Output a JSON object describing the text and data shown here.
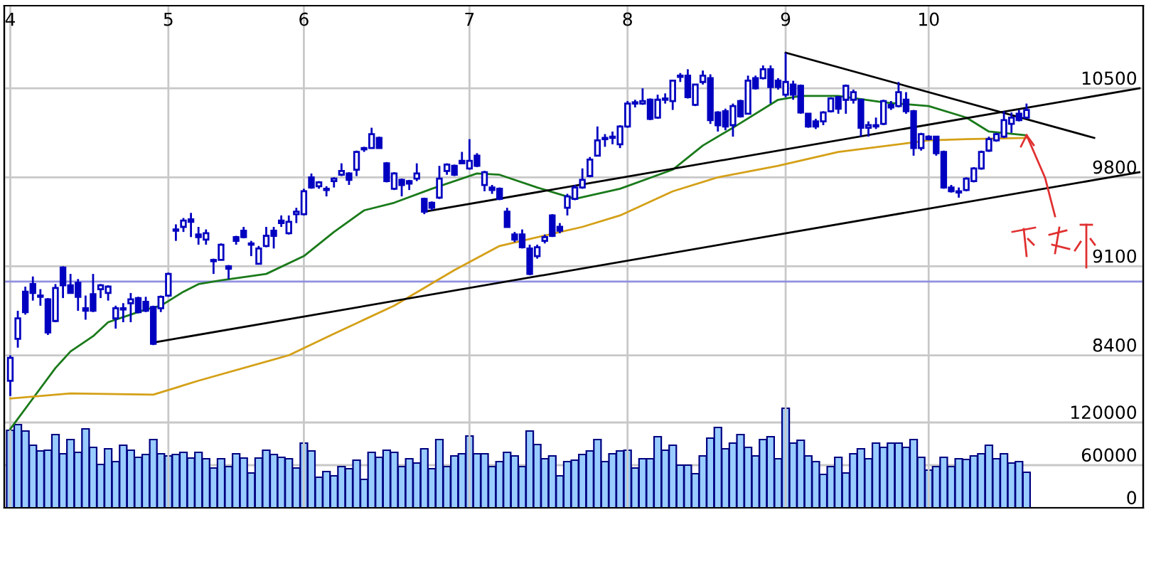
{
  "chart_data": {
    "type": "candlestick",
    "color": "#0000c0",
    "categories": [
      "4",
      null,
      null,
      null,
      null,
      null,
      null,
      null,
      null,
      null,
      null,
      null,
      null,
      null,
      null,
      null,
      null,
      null,
      null,
      null,
      null,
      "5",
      null,
      null,
      null,
      null,
      null,
      null,
      null,
      null,
      null,
      null,
      null,
      null,
      null,
      null,
      null,
      null,
      null,
      "6",
      null,
      null,
      null,
      null,
      null,
      null,
      null,
      null,
      null,
      null,
      null,
      null,
      null,
      null,
      null,
      null,
      null,
      null,
      null,
      null,
      null,
      "7",
      null,
      null,
      null,
      null,
      null,
      null,
      null,
      null,
      null,
      null,
      null,
      null,
      null,
      null,
      null,
      null,
      null,
      null,
      null,
      null,
      "8",
      null,
      null,
      null,
      null,
      null,
      null,
      null,
      null,
      null,
      null,
      null,
      null,
      null,
      null,
      null,
      null,
      null,
      null,
      null,
      null,
      "9",
      null,
      null,
      null,
      null,
      null,
      null,
      null,
      null,
      null,
      null,
      null,
      null,
      null,
      null,
      null,
      null,
      null,
      null,
      "10",
      null,
      null,
      null,
      null,
      null,
      null,
      null,
      null,
      null,
      null,
      null,
      null,
      null,
      null,
      null,
      null,
      null,
      null,
      null,
      null,
      null,
      null,
      null,
      null,
      null,
      null,
      null,
      null
    ],
    "ohlc": [
      [
        8200,
        8400,
        8080,
        8380
      ],
      [
        8530,
        8750,
        8460,
        8690
      ],
      [
        8900,
        8940,
        8720,
        8740
      ],
      [
        8960,
        9020,
        8830,
        8890
      ],
      [
        8870,
        8920,
        8790,
        8860
      ],
      [
        8840,
        8850,
        8560,
        8580
      ],
      [
        8670,
        8960,
        8660,
        8930
      ],
      [
        9090,
        9100,
        8850,
        8950
      ],
      [
        8950,
        9040,
        8890,
        8890
      ],
      [
        8970,
        9000,
        8750,
        8860
      ],
      [
        8770,
        8870,
        8680,
        8750
      ],
      [
        8880,
        9040,
        8740,
        8750
      ],
      [
        8920,
        8960,
        8850,
        8950
      ],
      [
        8890,
        8950,
        8830,
        8940
      ],
      [
        8690,
        8790,
        8610,
        8770
      ],
      [
        8770,
        8810,
        8660,
        8760
      ],
      [
        8810,
        8890,
        8660,
        8840
      ],
      [
        8850,
        8860,
        8730,
        8740
      ],
      [
        8820,
        8860,
        8740,
        8750
      ],
      [
        8780,
        8790,
        8480,
        8490
      ],
      [
        8770,
        8870,
        8740,
        8860
      ],
      [
        8870,
        9050,
        8860,
        9040
      ],
      [
        9390,
        9430,
        9300,
        9380
      ],
      [
        9410,
        9480,
        9370,
        9460
      ],
      [
        9470,
        9520,
        9330,
        9450
      ],
      [
        9350,
        9410,
        9270,
        9330
      ],
      [
        9310,
        9390,
        9270,
        9360
      ],
      [
        9150,
        9160,
        9040,
        9140
      ],
      [
        9150,
        9280,
        9150,
        9270
      ],
      [
        9100,
        9110,
        9000,
        9080
      ],
      [
        9330,
        9340,
        9270,
        9300
      ],
      [
        9380,
        9410,
        9320,
        9330
      ],
      [
        9280,
        9300,
        9180,
        9270
      ],
      [
        9120,
        9260,
        9120,
        9240
      ],
      [
        9260,
        9410,
        9250,
        9340
      ],
      [
        9380,
        9410,
        9240,
        9340
      ],
      [
        9460,
        9500,
        9410,
        9440
      ],
      [
        9360,
        9500,
        9350,
        9450
      ],
      [
        9510,
        9560,
        9440,
        9530
      ],
      [
        9510,
        9710,
        9500,
        9690
      ],
      [
        9800,
        9830,
        9710,
        9720
      ],
      [
        9730,
        9770,
        9710,
        9760
      ],
      [
        9710,
        9730,
        9650,
        9700
      ],
      [
        9770,
        9800,
        9720,
        9790
      ],
      [
        9820,
        9910,
        9810,
        9850
      ],
      [
        9830,
        9840,
        9740,
        9780
      ],
      [
        9860,
        10010,
        9810,
        10000
      ],
      [
        10020,
        10040,
        10000,
        10030
      ],
      [
        10030,
        10190,
        10030,
        10140
      ],
      [
        10110,
        10120,
        10030,
        10030
      ],
      [
        9910,
        9920,
        9760,
        9770
      ],
      [
        9710,
        9840,
        9700,
        9830
      ],
      [
        9780,
        9790,
        9650,
        9740
      ],
      [
        9770,
        9780,
        9700,
        9750
      ],
      [
        9790,
        9910,
        9770,
        9830
      ],
      [
        9630,
        9640,
        9510,
        9530
      ],
      [
        9600,
        9610,
        9540,
        9560
      ],
      [
        9640,
        9890,
        9630,
        9790
      ],
      [
        9850,
        9910,
        9820,
        9900
      ],
      [
        9890,
        9900,
        9810,
        9820
      ],
      [
        9930,
        10000,
        9910,
        9910
      ],
      [
        9870,
        10100,
        9860,
        9930
      ],
      [
        9970,
        9990,
        9880,
        9890
      ],
      [
        9740,
        9850,
        9690,
        9840
      ],
      [
        9720,
        9740,
        9670,
        9700
      ],
      [
        9710,
        9720,
        9620,
        9630
      ],
      [
        9530,
        9560,
        9410,
        9410
      ],
      [
        9350,
        9370,
        9290,
        9310
      ],
      [
        9350,
        9390,
        9240,
        9250
      ],
      [
        9240,
        9270,
        9030,
        9040
      ],
      [
        9180,
        9270,
        9160,
        9250
      ],
      [
        9300,
        9350,
        9280,
        9330
      ],
      [
        9500,
        9510,
        9330,
        9340
      ],
      [
        9410,
        9440,
        9360,
        9380
      ],
      [
        9560,
        9670,
        9500,
        9650
      ],
      [
        9630,
        9740,
        9620,
        9720
      ],
      [
        9720,
        9870,
        9710,
        9780
      ],
      [
        9810,
        9960,
        9800,
        9940
      ],
      [
        9970,
        10200,
        9970,
        10090
      ],
      [
        10100,
        10140,
        10040,
        10110
      ],
      [
        10110,
        10160,
        10060,
        10120
      ],
      [
        10060,
        10210,
        10030,
        10200
      ],
      [
        10200,
        10400,
        10190,
        10380
      ],
      [
        10380,
        10410,
        10350,
        10390
      ],
      [
        10380,
        10500,
        10370,
        10400
      ],
      [
        10410,
        10420,
        10250,
        10260
      ],
      [
        10270,
        10450,
        10260,
        10410
      ],
      [
        10410,
        10460,
        10380,
        10420
      ],
      [
        10400,
        10560,
        10330,
        10560
      ],
      [
        10590,
        10620,
        10550,
        10600
      ],
      [
        10600,
        10650,
        10420,
        10430
      ],
      [
        10370,
        10530,
        10360,
        10530
      ],
      [
        10550,
        10640,
        10530,
        10600
      ],
      [
        10580,
        10610,
        10220,
        10250
      ],
      [
        10310,
        10320,
        10160,
        10210
      ],
      [
        10320,
        10340,
        10170,
        10200
      ],
      [
        10210,
        10380,
        10120,
        10360
      ],
      [
        10400,
        10410,
        10270,
        10280
      ],
      [
        10300,
        10600,
        10300,
        10560
      ],
      [
        10580,
        10600,
        10490,
        10500
      ],
      [
        10580,
        10680,
        10570,
        10650
      ],
      [
        10650,
        10680,
        10380,
        10510
      ],
      [
        10560,
        10580,
        10490,
        10510
      ],
      [
        10450,
        10780,
        10430,
        10550
      ],
      [
        10530,
        10560,
        10410,
        10450
      ],
      [
        10520,
        10530,
        10300,
        10310
      ],
      [
        10300,
        10300,
        10190,
        10200
      ],
      [
        10240,
        10260,
        10180,
        10200
      ],
      [
        10240,
        10320,
        10210,
        10310
      ],
      [
        10320,
        10430,
        10310,
        10420
      ],
      [
        10430,
        10440,
        10300,
        10340
      ],
      [
        10410,
        10530,
        10300,
        10520
      ],
      [
        10410,
        10490,
        10380,
        10470
      ],
      [
        10410,
        10410,
        10120,
        10190
      ],
      [
        10190,
        10240,
        10120,
        10210
      ],
      [
        10200,
        10270,
        10180,
        10210
      ],
      [
        10220,
        10410,
        10210,
        10400
      ],
      [
        10370,
        10400,
        10330,
        10350
      ],
      [
        10360,
        10550,
        10350,
        10470
      ],
      [
        10410,
        10470,
        10300,
        10320
      ],
      [
        10320,
        10330,
        9970,
        10030
      ],
      [
        10030,
        10150,
        10010,
        10140
      ],
      [
        10120,
        10130,
        10090,
        10100
      ],
      [
        10120,
        10120,
        9970,
        9990
      ],
      [
        10000,
        10010,
        9710,
        9720
      ],
      [
        9720,
        9740,
        9680,
        9690
      ],
      [
        9690,
        9720,
        9640,
        9680
      ],
      [
        9700,
        9800,
        9690,
        9790
      ],
      [
        9770,
        9880,
        9760,
        9870
      ],
      [
        9870,
        10010,
        9860,
        10000
      ],
      [
        10010,
        10120,
        10000,
        10100
      ],
      [
        10090,
        10150,
        10080,
        10140
      ],
      [
        10120,
        10320,
        10110,
        10250
      ],
      [
        10220,
        10310,
        10150,
        10270
      ],
      [
        10300,
        10330,
        10240,
        10250
      ],
      [
        10270,
        10380,
        10260,
        10330
      ],
      null,
      null,
      null,
      null,
      null,
      null,
      null,
      null,
      null,
      null,
      null,
      null,
      null,
      null,
      null
    ],
    "series": [
      {
        "type": "line",
        "color": "#1a7a1a",
        "values": [
          7820,
          null,
          null,
          8060,
          null,
          null,
          8300,
          null,
          8430,
          null,
          null,
          8550,
          null,
          8660,
          null,
          8700,
          null,
          null,
          8760,
          null,
          8790,
          null,
          null,
          8900,
          null,
          8960,
          null,
          null,
          8990,
          null,
          null,
          null,
          null,
          null,
          9040,
          null,
          null,
          null,
          null,
          9180,
          null,
          null,
          null,
          9370,
          null,
          null,
          null,
          9540,
          null,
          null,
          null,
          9600,
          null,
          null,
          null,
          null,
          9710,
          null,
          null,
          null,
          null,
          null,
          9830,
          null,
          null,
          9820,
          null,
          null,
          null,
          null,
          9720,
          null,
          null,
          null,
          null,
          9630,
          null,
          null,
          null,
          null,
          null,
          9710,
          null,
          null,
          null,
          null,
          null,
          null,
          9860,
          null,
          null,
          null,
          10050,
          null,
          null,
          null,
          10190,
          null,
          null,
          null,
          null,
          null,
          10410,
          null,
          null,
          10440,
          null,
          null,
          null,
          null,
          10440,
          null,
          null,
          null,
          null,
          null,
          10390,
          null,
          null,
          null,
          null,
          null,
          10360,
          null,
          null,
          null,
          null,
          10270,
          null,
          null,
          10160,
          null,
          null,
          null,
          null,
          10130,
          null,
          null,
          null,
          null,
          null,
          null,
          null,
          null,
          null,
          null,
          null,
          null,
          null,
          null,
          null
        ]
      },
      {
        "type": "line",
        "color": "#d4a017",
        "values": [
          8060,
          null,
          null,
          null,
          null,
          null,
          null,
          null,
          8100,
          null,
          null,
          null,
          null,
          null,
          null,
          null,
          null,
          null,
          null,
          8090,
          null,
          null,
          null,
          null,
          null,
          8200,
          null,
          null,
          null,
          null,
          null,
          null,
          null,
          null,
          null,
          null,
          null,
          8400,
          null,
          null,
          null,
          null,
          null,
          8570,
          null,
          null,
          null,
          null,
          null,
          null,
          null,
          8790,
          null,
          null,
          null,
          null,
          null,
          null,
          null,
          9070,
          null,
          null,
          null,
          null,
          null,
          9260,
          null,
          null,
          null,
          null,
          null,
          null,
          null,
          null,
          null,
          null,
          9410,
          null,
          null,
          null,
          null,
          9500,
          null,
          null,
          null,
          null,
          null,
          null,
          9690,
          null,
          null,
          null,
          null,
          null,
          9800,
          null,
          null,
          null,
          null,
          null,
          null,
          null,
          9890,
          null,
          null,
          null,
          null,
          null,
          null,
          null,
          10000,
          null,
          null,
          null,
          null,
          null,
          null,
          null,
          null,
          null,
          null,
          null,
          10090,
          null,
          null,
          null,
          null,
          10100,
          null,
          null,
          null,
          null,
          null,
          null,
          null,
          10110,
          null,
          null,
          null,
          null,
          null,
          null,
          null,
          null,
          null,
          null,
          null,
          null,
          null,
          null,
          null
        ]
      },
      {
        "type": "line",
        "color": "#000000",
        "values": [
          null,
          null,
          null,
          null,
          null,
          null,
          null,
          null,
          null,
          null,
          null,
          null,
          null,
          null,
          null,
          null,
          null,
          null,
          null,
          8500,
          null,
          null,
          null,
          null,
          null,
          null,
          null,
          null,
          null,
          null,
          null,
          null,
          null,
          null,
          null,
          null,
          null,
          null,
          null,
          null,
          null,
          null,
          null,
          null,
          null,
          null,
          null,
          null,
          null,
          null,
          null,
          null,
          null,
          null,
          null,
          null,
          null,
          null,
          null,
          null,
          null,
          null,
          null,
          null,
          null,
          null,
          null,
          null,
          null,
          null,
          null,
          null,
          null,
          null,
          null,
          null,
          null,
          null,
          null,
          null,
          null,
          null,
          null,
          null,
          null,
          null,
          null,
          null,
          null,
          null,
          null,
          null,
          null,
          null,
          null,
          null,
          null,
          null,
          null,
          null,
          null,
          null,
          null,
          null,
          null,
          null,
          null,
          null,
          null,
          null,
          null,
          null,
          null,
          null,
          null,
          null,
          null,
          null,
          null,
          null,
          null,
          null,
          null,
          null,
          null,
          null,
          null,
          null,
          null,
          null,
          null,
          null,
          null,
          null,
          null,
          null,
          null,
          null,
          null,
          null,
          null,
          null,
          null,
          null,
          null,
          null,
          null,
          null,
          null,
          null,
          9840
        ]
      },
      {
        "type": "line",
        "color": "#000000",
        "values": [
          null,
          null,
          null,
          null,
          null,
          null,
          null,
          null,
          null,
          null,
          null,
          null,
          null,
          null,
          null,
          null,
          null,
          null,
          null,
          null,
          null,
          null,
          null,
          null,
          null,
          null,
          null,
          null,
          null,
          null,
          null,
          null,
          null,
          null,
          null,
          null,
          null,
          null,
          null,
          null,
          null,
          null,
          null,
          null,
          null,
          null,
          null,
          null,
          null,
          null,
          null,
          null,
          null,
          null,
          null,
          9530,
          null,
          null,
          null,
          null,
          null,
          null,
          null,
          null,
          null,
          null,
          null,
          null,
          null,
          null,
          null,
          null,
          null,
          null,
          null,
          null,
          null,
          null,
          null,
          null,
          null,
          null,
          null,
          null,
          null,
          null,
          null,
          null,
          null,
          null,
          null,
          null,
          null,
          null,
          null,
          null,
          null,
          null,
          null,
          null,
          null,
          null,
          null,
          null,
          null,
          null,
          null,
          null,
          null,
          null,
          null,
          null,
          null,
          null,
          null,
          null,
          null,
          null,
          null,
          null,
          null,
          null,
          null,
          null,
          null,
          null,
          null,
          null,
          null,
          null,
          null,
          null,
          null,
          null,
          null,
          null,
          null,
          null,
          null,
          null,
          null,
          null,
          null,
          null,
          null,
          null,
          null,
          null,
          null,
          null,
          10500
        ]
      },
      {
        "type": "line",
        "color": "#000000",
        "values": [
          null,
          null,
          null,
          null,
          null,
          null,
          null,
          null,
          null,
          null,
          null,
          null,
          null,
          null,
          null,
          null,
          null,
          null,
          null,
          null,
          null,
          null,
          null,
          null,
          null,
          null,
          null,
          null,
          null,
          null,
          null,
          null,
          null,
          null,
          null,
          null,
          null,
          null,
          null,
          null,
          null,
          null,
          null,
          null,
          null,
          null,
          null,
          null,
          null,
          null,
          null,
          null,
          null,
          null,
          null,
          null,
          null,
          null,
          null,
          null,
          null,
          null,
          null,
          null,
          null,
          null,
          null,
          null,
          null,
          null,
          null,
          null,
          null,
          null,
          null,
          null,
          null,
          null,
          null,
          null,
          null,
          null,
          null,
          null,
          null,
          null,
          null,
          null,
          null,
          null,
          null,
          null,
          null,
          null,
          null,
          null,
          null,
          null,
          null,
          null,
          null,
          null,
          null,
          10780,
          null,
          null,
          null,
          null,
          null,
          null,
          null,
          null,
          null,
          null,
          null,
          null,
          null,
          null,
          null,
          null,
          null,
          null,
          null,
          null,
          null,
          null,
          null,
          null,
          null,
          null,
          null,
          null,
          null,
          null,
          null,
          null,
          null,
          null,
          null,
          null,
          null,
          null,
          null,
          null,
          10110,
          null,
          null,
          null,
          null,
          null,
          null
        ]
      },
      {
        "type": "bar",
        "axis": "y2",
        "color": "#99ccff",
        "values": [
          109000,
          117000,
          108000,
          88000,
          80000,
          81000,
          103000,
          76000,
          96000,
          78000,
          111000,
          85000,
          61000,
          83000,
          65000,
          88000,
          81000,
          71000,
          75000,
          96000,
          76000,
          73000,
          75000,
          78000,
          70000,
          78000,
          69000,
          56000,
          69000,
          58000,
          76000,
          70000,
          49000,
          70000,
          81000,
          75000,
          71000,
          69000,
          56000,
          91000,
          80000,
          43000,
          51000,
          45000,
          58000,
          55000,
          67000,
          40000,
          78000,
          71000,
          81000,
          78000,
          58000,
          69000,
          63000,
          83000,
          55000,
          96000,
          58000,
          73000,
          76000,
          101000,
          76000,
          76000,
          58000,
          65000,
          78000,
          73000,
          58000,
          108000,
          89000,
          69000,
          73000,
          45000,
          65000,
          67000,
          75000,
          80000,
          96000,
          65000,
          76000,
          80000,
          81000,
          56000,
          69000,
          69000,
          100000,
          81000,
          88000,
          60000,
          60000,
          48000,
          73000,
          98000,
          113000,
          83000,
          91000,
          103000,
          85000,
          73000,
          96000,
          100000,
          69000,
          140000,
          91000,
          95000,
          73000,
          65000,
          47000,
          58000,
          71000,
          49000,
          76000,
          83000,
          69000,
          91000,
          85000,
          91000,
          91000,
          85000,
          96000,
          71000,
          53000,
          58000,
          71000,
          58000,
          69000,
          68000,
          73000,
          76000,
          88000,
          69000,
          76000,
          63000,
          65000,
          50000,
          null,
          null,
          null,
          null,
          null,
          null,
          null,
          null,
          null,
          null,
          null,
          null,
          null,
          null,
          null
        ]
      }
    ],
    "ylim": [
      7200,
      11150
    ],
    "yticks": [
      8400,
      9100,
      9800,
      10500
    ],
    "y2lim": [
      0,
      706000
    ],
    "y2ticks": [
      0,
      60000,
      120000
    ],
    "ref_lines": [
      {
        "axis": "y",
        "value": 8980,
        "color": "#9090e0"
      }
    ],
    "grid": true
  }
}
